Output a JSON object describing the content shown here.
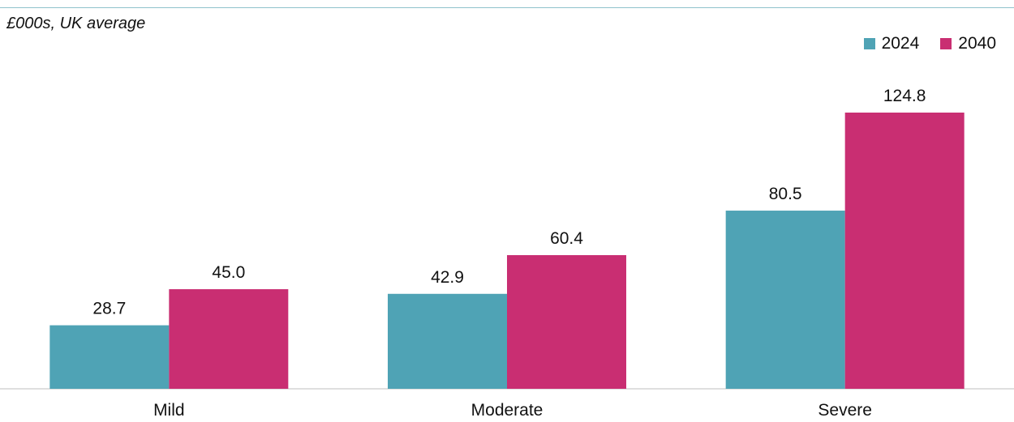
{
  "subtitle": "£000s, UK average",
  "colors": {
    "series_2024": "#4fa3b5",
    "series_2040": "#c92e72",
    "axis": "#bfbfbf"
  },
  "legend": [
    {
      "label": "2024",
      "color": "#4fa3b5"
    },
    {
      "label": "2040",
      "color": "#c92e72"
    }
  ],
  "chart_data": {
    "type": "bar",
    "categories": [
      "Mild",
      "Moderate",
      "Severe"
    ],
    "series": [
      {
        "name": "2024",
        "values": [
          28.7,
          42.9,
          80.5
        ]
      },
      {
        "name": "2040",
        "values": [
          45.0,
          60.4,
          124.8
        ]
      }
    ],
    "data_labels": [
      [
        "28.7",
        "42.9",
        "80.5"
      ],
      [
        "45.0",
        "60.4",
        "124.8"
      ]
    ],
    "subtitle": "£000s, UK average",
    "xlabel": "",
    "ylabel": "",
    "ylim": [
      0,
      124.8
    ],
    "grid": false,
    "legend_position": "top-right"
  }
}
